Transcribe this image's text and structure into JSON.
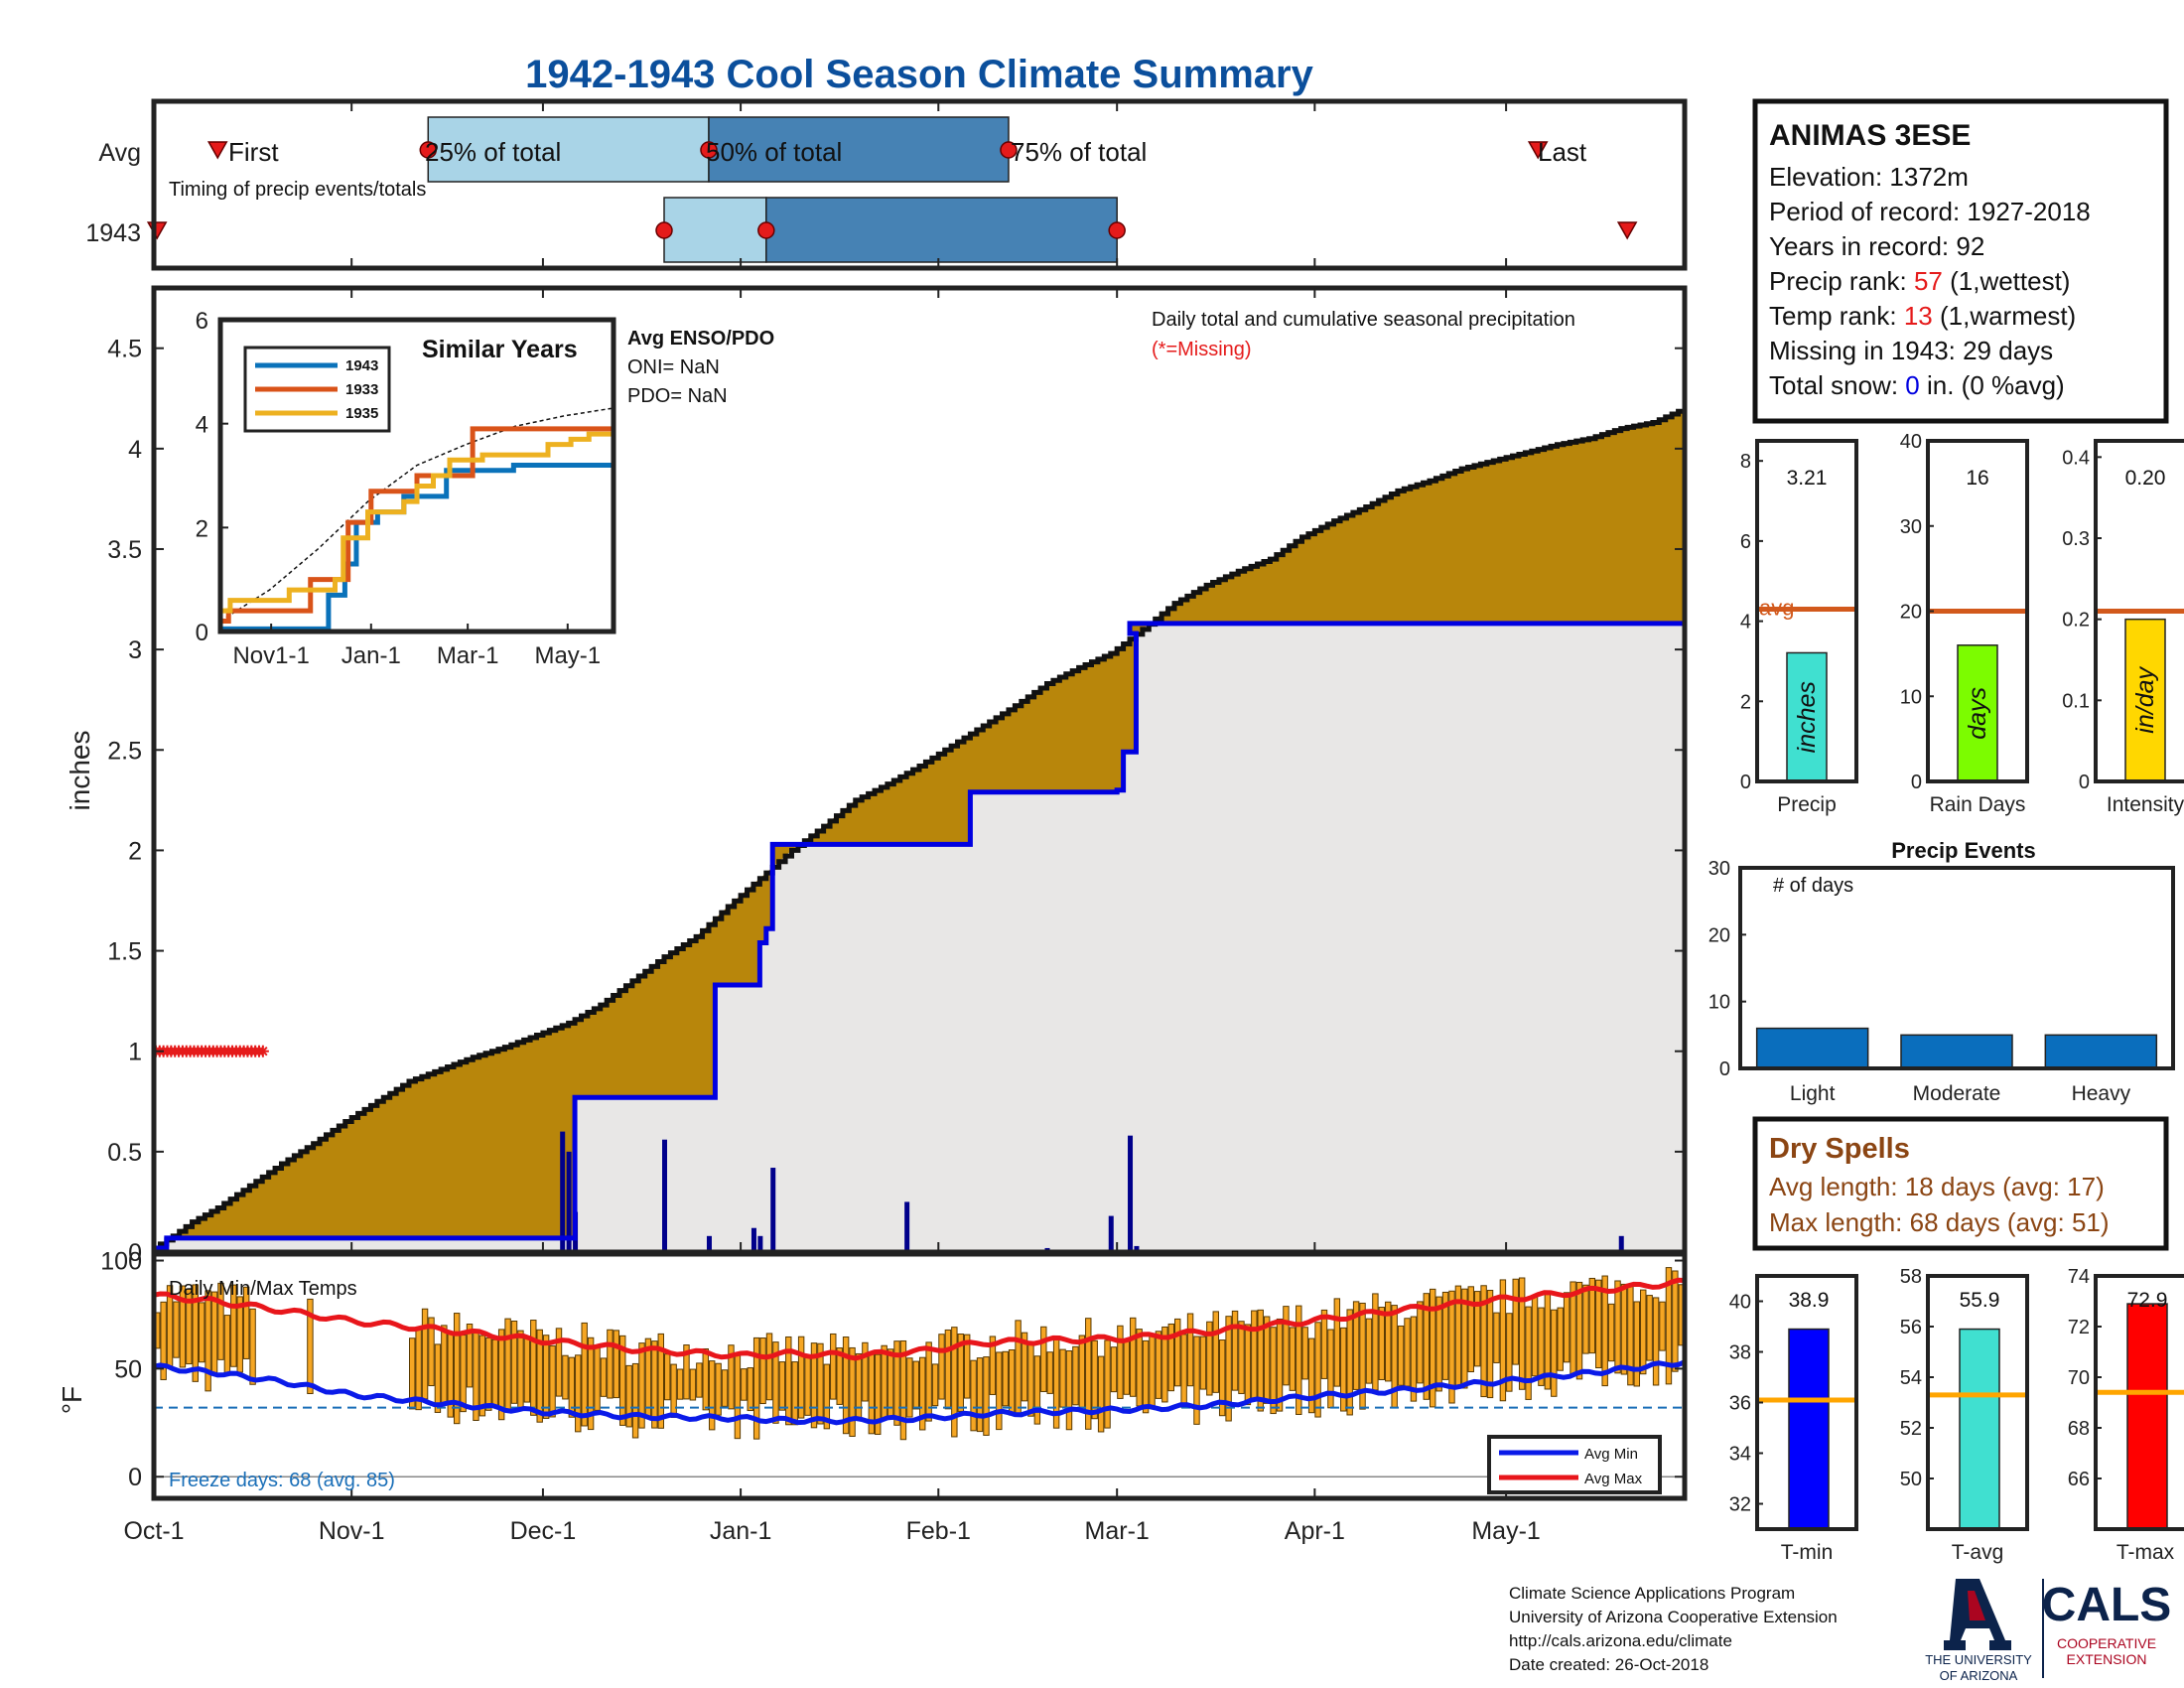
{
  "title": "1942-1943 Cool Season Climate Summary",
  "colors": {
    "title": "#0B4F9C",
    "light_blue": "#A9D4E7",
    "mid_blue": "#4682B4",
    "fill_gold": "#B8860B",
    "cum_blue": "#0000E0",
    "daily_bar": "#00008B",
    "orange_bar": "#F5A623",
    "avg_max_red": "#E8161B",
    "avg_min_blue": "#0A1AE8",
    "avg_line": "#D2591C",
    "missing_red": "#E51B1B",
    "gray_fill": "#E8E7E6",
    "tmin_blue": "#0000FF",
    "tavg_cyan": "#40E0D0",
    "tmax_red": "#FF0000",
    "precip_bar": "#40E0D0",
    "raindays_bar": "#7CFC00",
    "intensity_bar": "#FFD700",
    "event_bar": "#0A6EBD",
    "dry_spell_brown": "#8B4513"
  },
  "station": {
    "name": "ANIMAS 3ESE",
    "elevation_label": "Elevation: 1372m",
    "period_label": "Period of record: 1927-2018",
    "years_label": "Years in record: 92",
    "precip_rank_pre": "Precip rank: ",
    "precip_rank_val": "57",
    "precip_rank_post": " (1,wettest)",
    "temp_rank_pre": "Temp rank: ",
    "temp_rank_val": "13",
    "temp_rank_post": " (1,warmest)",
    "missing_label": "Missing in 1943: 29 days",
    "snow_pre": "Total snow: ",
    "snow_val": "0",
    "snow_post": " in. (0 %avg)"
  },
  "timing": {
    "row_labels": [
      "Avg",
      "1943"
    ],
    "first_label": "First",
    "p25_label": "25% of total",
    "p50_label": "50% of total",
    "p75_label": "75% of total",
    "last_label": "Last",
    "caption": "Timing of precip events/totals",
    "avg": {
      "first": 10,
      "p25": 43,
      "p50": 87,
      "p75": 134,
      "last": 217
    },
    "y1943": {
      "first": 0.5,
      "p25": 80,
      "p50": 96,
      "p75": 151,
      "last": 231
    }
  },
  "precip_chart": {
    "ylabel": "inches",
    "yticks": [
      "0",
      "0.5",
      "1",
      "1.5",
      "2",
      "2.5",
      "3",
      "3.5",
      "4",
      "4.5"
    ],
    "annot_title": "Daily total and cumulative seasonal precipitation",
    "annot_missing": "(*=Missing)",
    "avg_cum_x": [
      0,
      3,
      6,
      10,
      15,
      20,
      25,
      30,
      35,
      40,
      45,
      50,
      55,
      60,
      65,
      70,
      75,
      80,
      85,
      90,
      95,
      100,
      105,
      110,
      115,
      120,
      125,
      130,
      135,
      140,
      145,
      150,
      155,
      160,
      165,
      170,
      175,
      180,
      185,
      190,
      195,
      200,
      205,
      210,
      215,
      220,
      225,
      230,
      235,
      240
    ],
    "avg_cum_y": [
      0.02,
      0.08,
      0.15,
      0.22,
      0.33,
      0.44,
      0.54,
      0.65,
      0.75,
      0.85,
      0.91,
      0.97,
      1.02,
      1.08,
      1.14,
      1.23,
      1.35,
      1.47,
      1.57,
      1.72,
      1.86,
      2.0,
      2.12,
      2.25,
      2.33,
      2.42,
      2.52,
      2.62,
      2.72,
      2.83,
      2.91,
      2.98,
      3.1,
      3.23,
      3.32,
      3.39,
      3.45,
      3.56,
      3.64,
      3.71,
      3.79,
      3.84,
      3.9,
      3.94,
      3.98,
      4.02,
      4.05,
      4.1,
      4.13,
      4.2
    ],
    "cum_1943_x": [
      0,
      2,
      64,
      66,
      82,
      88,
      94,
      95,
      96,
      97,
      118,
      128,
      151,
      152,
      153,
      154,
      153,
      240
    ],
    "cum_1943_y": [
      0.02,
      0.07,
      0.07,
      0.77,
      0.77,
      1.33,
      1.33,
      1.54,
      1.61,
      2.03,
      2.03,
      2.29,
      2.3,
      2.49,
      2.49,
      3.08,
      3.13,
      3.23
    ],
    "daily_x": [
      64,
      65,
      66,
      80,
      87,
      94,
      95,
      97,
      118,
      140,
      150,
      153,
      154,
      156,
      230
    ],
    "daily_y": [
      0.6,
      0.5,
      0.2,
      0.56,
      0.08,
      0.12,
      0.08,
      0.42,
      0.25,
      0.02,
      0.18,
      0.58,
      0.03,
      0.01,
      0.08
    ],
    "missing_days_count": 29
  },
  "inset": {
    "title": "Similar Years",
    "legend": [
      "1943",
      "1933",
      "1935"
    ],
    "yticks": [
      "0",
      "2",
      "4",
      "6"
    ],
    "xticks": [
      "Nov1-1",
      "Jan-1",
      "Mar-1",
      "May-1"
    ],
    "series": [
      {
        "x": [
          0,
          30,
          57,
          66,
          73,
          76,
          80,
          83,
          94,
          96,
          110,
          112,
          130,
          138,
          154,
          176,
          179,
          214,
          240
        ],
        "y": [
          0.05,
          0.05,
          0.05,
          0.7,
          0.7,
          1.3,
          1.3,
          2.1,
          2.1,
          2.3,
          2.3,
          2.6,
          2.6,
          3.1,
          3.1,
          3.1,
          3.2,
          3.2,
          3.3
        ]
      },
      {
        "x": [
          0,
          5,
          50,
          55,
          72,
          78,
          88,
          92,
          105,
          110,
          120,
          134,
          154,
          176,
          186,
          200,
          240
        ],
        "y": [
          0.2,
          0.4,
          0.4,
          1.0,
          1.0,
          2.1,
          2.1,
          2.7,
          2.7,
          2.7,
          3.0,
          3.0,
          3.9,
          3.9,
          3.9,
          3.9,
          3.9
        ]
      },
      {
        "x": [
          0,
          6,
          40,
          42,
          55,
          70,
          75,
          84,
          90,
          104,
          112,
          120,
          130,
          140,
          155,
          160,
          180,
          200,
          214,
          225,
          235,
          240
        ],
        "y": [
          0.4,
          0.6,
          0.6,
          0.8,
          0.8,
          1.0,
          1.8,
          1.8,
          2.3,
          2.3,
          2.5,
          2.8,
          3.0,
          3.3,
          3.3,
          3.4,
          3.4,
          3.6,
          3.7,
          3.8,
          3.8,
          4.1
        ]
      }
    ],
    "avg_x": [
      0,
      30,
      60,
      90,
      120,
      150,
      180,
      210,
      240
    ],
    "avg_y": [
      0.2,
      0.8,
      1.6,
      2.5,
      3.2,
      3.6,
      3.95,
      4.15,
      4.3
    ]
  },
  "enso": {
    "title": "Avg ENSO/PDO",
    "oni": "ONI= NaN",
    "pdo": "PDO= NaN"
  },
  "temp_chart": {
    "title": "Daily Min/Max Temps",
    "ylabel": "°F",
    "yticks": [
      "0",
      "50",
      "100"
    ],
    "freeze_label": "Freeze days: 68 (avg. 85)",
    "freeze_level": 32,
    "legend_min": "Avg Min",
    "legend_max": "Avg Max",
    "avg_max_x": [
      0,
      10,
      20,
      31,
      45,
      61,
      75,
      92,
      100,
      110,
      120,
      130,
      140,
      152,
      165,
      181,
      195,
      211,
      225,
      240
    ],
    "avg_max_y": [
      84,
      81,
      77,
      72,
      68,
      63,
      59,
      56,
      57,
      56,
      58,
      62,
      63,
      64,
      67,
      72,
      77,
      82,
      86,
      90
    ],
    "avg_min_x": [
      0,
      10,
      20,
      31,
      45,
      61,
      75,
      92,
      100,
      110,
      120,
      130,
      140,
      152,
      165,
      181,
      195,
      211,
      225,
      240
    ],
    "avg_min_y": [
      51,
      48,
      44,
      38,
      34,
      30,
      28,
      27,
      26,
      26,
      27,
      29,
      30,
      31,
      33,
      37,
      40,
      44,
      48,
      53
    ]
  },
  "months": [
    "Oct-1",
    "Nov-1",
    "Dec-1",
    "Jan-1",
    "Feb-1",
    "Mar-1",
    "Apr-1",
    "May-1"
  ],
  "month_offsets": [
    0,
    31,
    61,
    92,
    123,
    151,
    182,
    212
  ],
  "season_days": 240,
  "summary_bars": {
    "precip": {
      "label": "Precip",
      "value_label": "3.21",
      "value": 3.21,
      "avg": 4.3,
      "ymax": 8.5,
      "yticks": [
        "0",
        "2",
        "4",
        "6",
        "8"
      ],
      "unit": "inches",
      "avg_label": "avg"
    },
    "rain_days": {
      "label": "Rain Days",
      "value_label": "16",
      "value": 16,
      "avg": 20,
      "ymax": 40,
      "yticks": [
        "0",
        "10",
        "20",
        "30",
        "40"
      ],
      "unit": "days"
    },
    "intensity": {
      "label": "Intensity",
      "value_label": "0.20",
      "value": 0.2,
      "avg": 0.21,
      "ymax": 0.42,
      "yticks": [
        "0",
        "0.1",
        "0.2",
        "0.3",
        "0.4"
      ],
      "unit": "in/day"
    }
  },
  "events": {
    "title": "Precip Events",
    "ylabel_inside": "# of days",
    "yticks": [
      "0",
      "10",
      "20",
      "30"
    ],
    "categories": [
      "Light",
      "Moderate",
      "Heavy"
    ],
    "values": [
      6,
      5,
      5
    ]
  },
  "dry_spells": {
    "title": "Dry Spells",
    "avg_length": "Avg length: 18 days (avg: 17)",
    "max_length": "Max length: 68 days (avg: 51)"
  },
  "temp_bars": {
    "tmin": {
      "label": "T-min",
      "value_label": "38.9",
      "value": 38.9,
      "avg": 36.1,
      "ymin": 31,
      "ymax": 41,
      "yticks": [
        "32",
        "34",
        "36",
        "38",
        "40"
      ]
    },
    "tavg": {
      "label": "T-avg",
      "value_label": "55.9",
      "value": 55.9,
      "avg": 53.3,
      "ymin": 48,
      "ymax": 58,
      "yticks": [
        "50",
        "52",
        "54",
        "56",
        "58"
      ]
    },
    "tmax": {
      "label": "T-max",
      "value_label": "72.9",
      "value": 72.9,
      "avg": 69.4,
      "ymin": 64,
      "ymax": 74,
      "yticks": [
        "66",
        "68",
        "70",
        "72",
        "74"
      ]
    }
  },
  "footer": {
    "line1": "Climate Science Applications Program",
    "line2": "University of Arizona Cooperative Extension",
    "line3": "http://cals.arizona.edu/climate",
    "line4": " Date created: 26-Oct-2018"
  },
  "logos": {
    "ua_line1": "THE UNIVERSITY",
    "ua_line2": "OF ARIZONA",
    "cals": "CALS",
    "cals_line1": "COOPERATIVE",
    "cals_line2": "EXTENSION"
  }
}
